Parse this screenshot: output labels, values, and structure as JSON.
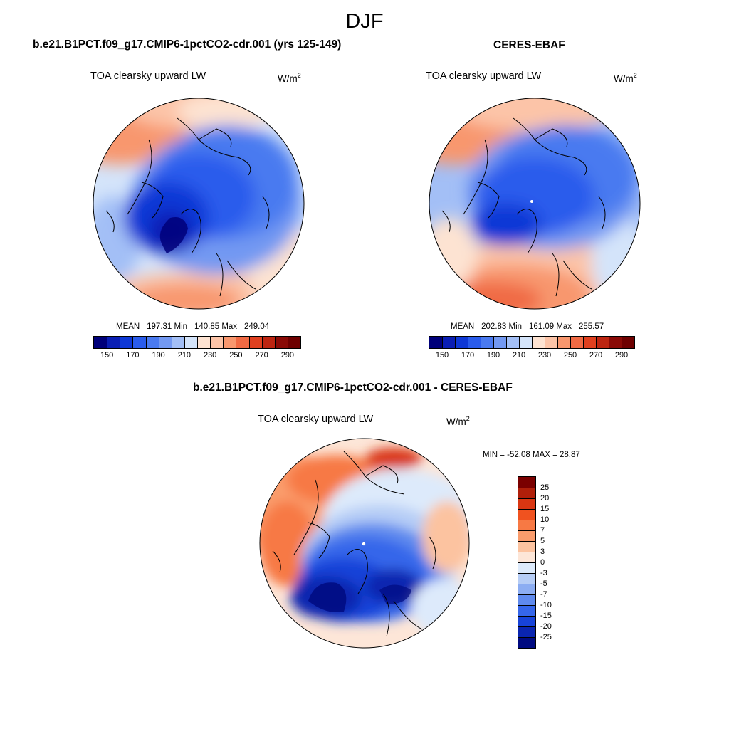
{
  "figure": {
    "season": "DJF",
    "units_base": "W/m",
    "units_exp": "2",
    "variable": "TOA clearsky upward LW"
  },
  "panels": {
    "model": {
      "title": "b.e21.B1PCT.f09_g17.CMIP6-1pctCO2-cdr.001 (yrs 125-149)",
      "subtitle": "TOA clearsky upward LW",
      "stats": "MEAN= 197.31  Min= 140.85  Max= 249.04"
    },
    "obs": {
      "title": "CERES-EBAF",
      "subtitle": "TOA clearsky upward LW",
      "stats": "MEAN= 202.83  Min= 161.09  Max= 255.57"
    },
    "diff": {
      "title": "b.e21.B1PCT.f09_g17.CMIP6-1pctCO2-cdr.001 - CERES-EBAF",
      "subtitle": "TOA clearsky upward LW",
      "stats": "MIN = -52.08 MAX =  28.87"
    }
  },
  "chart_data": [
    {
      "type": "heatmap",
      "projection": "north polar stereographic",
      "title": "b.e21.B1PCT.f09_g17.CMIP6-1pctCO2-cdr.001 (yrs 125-149)",
      "field": "TOA clearsky upward LW",
      "mean": 197.31,
      "min": 140.85,
      "max": 249.04,
      "colorbar": {
        "orientation": "horizontal",
        "levels": [
          150,
          160,
          170,
          180,
          190,
          200,
          210,
          220,
          230,
          240,
          250,
          260,
          270,
          280,
          290
        ],
        "tick_labels": [
          "150",
          "170",
          "190",
          "210",
          "230",
          "250",
          "270",
          "290"
        ],
        "colors": [
          "#00007a",
          "#0a1eb4",
          "#0e38d6",
          "#2a5cec",
          "#4a7af0",
          "#7399f2",
          "#a3bff6",
          "#d4e4fa",
          "#fde3d2",
          "#fcc4a8",
          "#f8976e",
          "#f06a44",
          "#e0401f",
          "#bd2511",
          "#8a0a06",
          "#6e0000"
        ]
      }
    },
    {
      "type": "heatmap",
      "projection": "north polar stereographic",
      "title": "CERES-EBAF",
      "field": "TOA clearsky upward LW",
      "mean": 202.83,
      "min": 161.09,
      "max": 255.57,
      "colorbar": {
        "orientation": "horizontal",
        "levels": [
          150,
          160,
          170,
          180,
          190,
          200,
          210,
          220,
          230,
          240,
          250,
          260,
          270,
          280,
          290
        ],
        "tick_labels": [
          "150",
          "170",
          "190",
          "210",
          "230",
          "250",
          "270",
          "290"
        ],
        "colors": [
          "#00007a",
          "#0a1eb4",
          "#0e38d6",
          "#2a5cec",
          "#4a7af0",
          "#7399f2",
          "#a3bff6",
          "#d4e4fa",
          "#fde3d2",
          "#fcc4a8",
          "#f8976e",
          "#f06a44",
          "#e0401f",
          "#bd2511",
          "#8a0a06",
          "#6e0000"
        ]
      }
    },
    {
      "type": "heatmap",
      "projection": "north polar stereographic",
      "title": "b.e21.B1PCT.f09_g17.CMIP6-1pctCO2-cdr.001 - CERES-EBAF",
      "field": "TOA clearsky upward LW",
      "min": -52.08,
      "max": 28.87,
      "colorbar": {
        "orientation": "vertical",
        "tick_labels": [
          "25",
          "20",
          "15",
          "10",
          "7",
          "5",
          "3",
          "0",
          "-3",
          "-5",
          "-7",
          "-10",
          "-15",
          "-20",
          "-25"
        ],
        "colors": [
          "#7a0000",
          "#b01f0a",
          "#d93612",
          "#f0521f",
          "#f77944",
          "#fa9c6c",
          "#fcc3a0",
          "#fde6d8",
          "#ddeafb",
          "#b6cdf6",
          "#8cadf2",
          "#5f8aee",
          "#3566ea",
          "#1743d8",
          "#0a25b0",
          "#000a80"
        ]
      }
    }
  ]
}
